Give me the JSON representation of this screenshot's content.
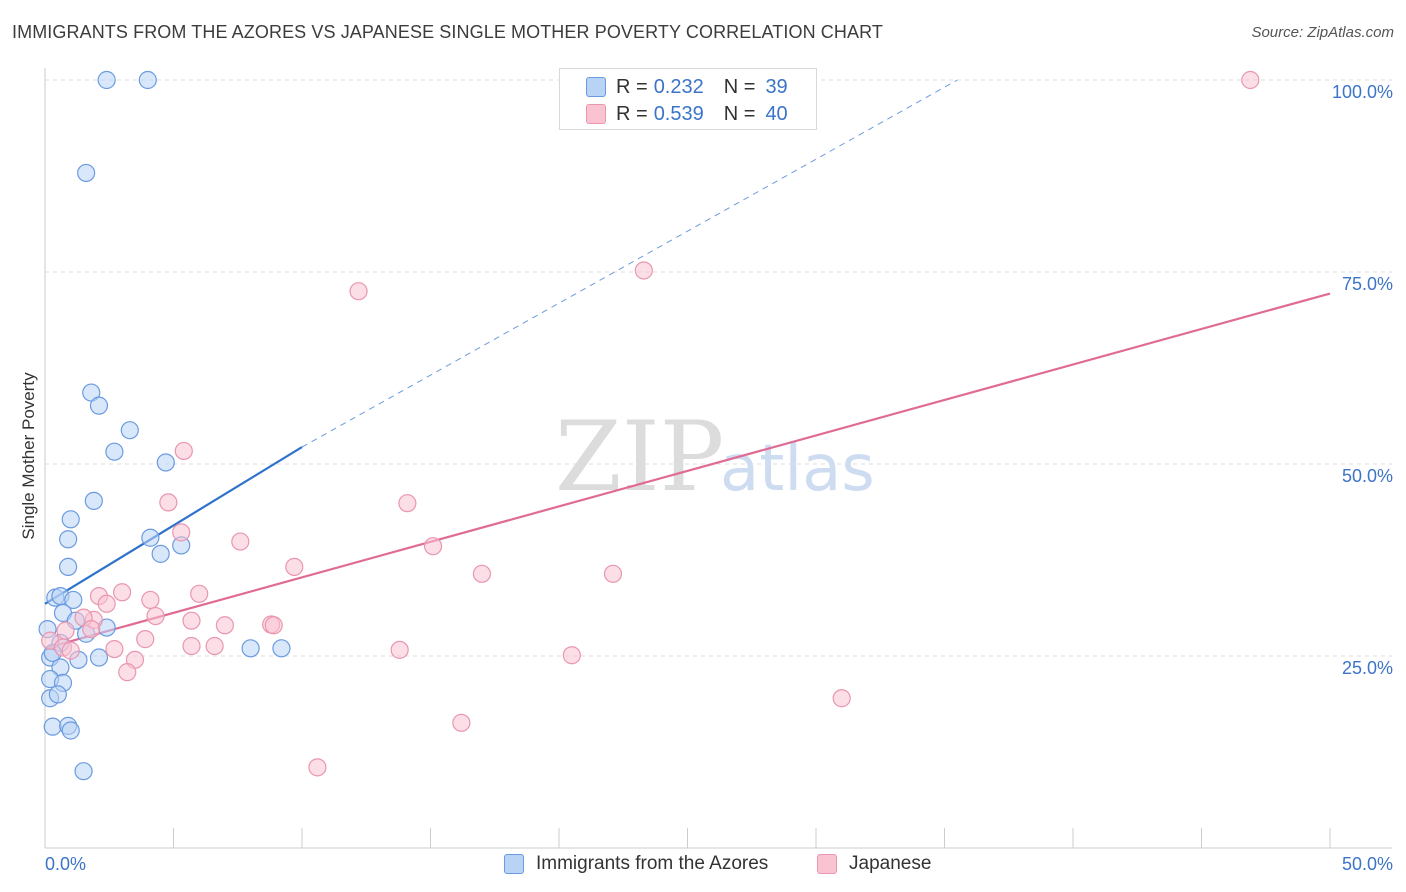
{
  "header": {
    "title": "IMMIGRANTS FROM THE AZORES VS JAPANESE SINGLE MOTHER POVERTY CORRELATION CHART",
    "source": "Source: ZipAtlas.com"
  },
  "watermark": {
    "zip": "ZIP",
    "atlas": "atlas"
  },
  "legend": {
    "r_label": "R =",
    "n_label": "N =",
    "rows": [
      {
        "r": "0.232",
        "n": "39"
      },
      {
        "r": "0.539",
        "n": "40"
      }
    ]
  },
  "colors": {
    "series1_fill": "#b9d3f5",
    "series1_stroke": "#6a9be0",
    "series1_line": "#2f72cc",
    "series2_fill": "#f9c3d2",
    "series2_stroke": "#e996b0",
    "series2_line": "#e06c93",
    "tick_label": "#3b74c8",
    "grid": "#dcdcdc"
  },
  "chart_data": {
    "type": "scatter",
    "title": "IMMIGRANTS FROM THE AZORES VS JAPANESE SINGLE MOTHER POVERTY CORRELATION CHART",
    "xlabel": "",
    "ylabel": "Single Mother Poverty",
    "xlim": [
      0,
      50
    ],
    "ylim": [
      0,
      100
    ],
    "x_tick_labels": [
      "0.0%",
      "50.0%"
    ],
    "y_ticks": [
      25,
      50,
      75,
      100
    ],
    "y_tick_labels": [
      "25.0%",
      "50.0%",
      "75.0%",
      "100.0%"
    ],
    "grid": true,
    "legend_position": "top-center",
    "series": [
      {
        "name": "Immigrants from the Azores",
        "r": 0.232,
        "n": 39,
        "trend": {
          "x": [
            0,
            10
          ],
          "y": [
            31.8,
            52.2
          ],
          "extended_to": [
            35.5,
            100
          ]
        },
        "points": [
          [
            2.4,
            100
          ],
          [
            4.0,
            100
          ],
          [
            1.6,
            87.9
          ],
          [
            1.8,
            59.3
          ],
          [
            2.1,
            57.6
          ],
          [
            3.3,
            54.4
          ],
          [
            2.7,
            51.6
          ],
          [
            4.7,
            50.2
          ],
          [
            1.9,
            45.2
          ],
          [
            1.0,
            42.8
          ],
          [
            0.9,
            40.2
          ],
          [
            4.1,
            40.4
          ],
          [
            5.3,
            39.4
          ],
          [
            4.5,
            38.3
          ],
          [
            0.9,
            36.6
          ],
          [
            0.4,
            32.6
          ],
          [
            0.6,
            32.8
          ],
          [
            1.1,
            32.3
          ],
          [
            0.7,
            30.6
          ],
          [
            1.2,
            29.6
          ],
          [
            1.6,
            27.9
          ],
          [
            2.4,
            28.7
          ],
          [
            0.1,
            28.5
          ],
          [
            0.6,
            26.7
          ],
          [
            0.2,
            24.8
          ],
          [
            0.3,
            25.4
          ],
          [
            1.3,
            24.5
          ],
          [
            2.1,
            24.8
          ],
          [
            0.6,
            23.5
          ],
          [
            0.2,
            22.0
          ],
          [
            0.7,
            21.5
          ],
          [
            0.2,
            19.5
          ],
          [
            0.5,
            20.0
          ],
          [
            0.3,
            15.8
          ],
          [
            0.9,
            15.9
          ],
          [
            1.0,
            15.3
          ],
          [
            1.5,
            10.0
          ],
          [
            8.0,
            26.0
          ],
          [
            9.2,
            26.0
          ]
        ]
      },
      {
        "name": "Japanese",
        "r": 0.539,
        "n": 40,
        "trend": {
          "x": [
            0,
            50
          ],
          "y": [
            26.0,
            72.2
          ]
        },
        "points": [
          [
            46.9,
            100
          ],
          [
            23.3,
            75.2
          ],
          [
            12.2,
            72.5
          ],
          [
            5.4,
            51.7
          ],
          [
            4.8,
            45.0
          ],
          [
            14.1,
            44.9
          ],
          [
            5.3,
            41.1
          ],
          [
            7.6,
            39.9
          ],
          [
            15.1,
            39.3
          ],
          [
            9.7,
            36.6
          ],
          [
            17.0,
            35.7
          ],
          [
            22.1,
            35.7
          ],
          [
            3.0,
            33.3
          ],
          [
            6.0,
            33.1
          ],
          [
            2.1,
            32.8
          ],
          [
            4.1,
            32.3
          ],
          [
            2.4,
            31.8
          ],
          [
            4.3,
            30.2
          ],
          [
            1.9,
            29.7
          ],
          [
            1.5,
            30.0
          ],
          [
            5.7,
            29.6
          ],
          [
            7.0,
            29.0
          ],
          [
            8.8,
            29.1
          ],
          [
            8.9,
            29.0
          ],
          [
            1.8,
            28.5
          ],
          [
            0.8,
            28.3
          ],
          [
            3.9,
            27.2
          ],
          [
            0.2,
            27.0
          ],
          [
            5.7,
            26.3
          ],
          [
            6.6,
            26.3
          ],
          [
            0.7,
            26.1
          ],
          [
            1.0,
            25.7
          ],
          [
            2.7,
            25.9
          ],
          [
            13.8,
            25.8
          ],
          [
            20.5,
            25.1
          ],
          [
            3.5,
            24.5
          ],
          [
            3.2,
            22.9
          ],
          [
            31.0,
            19.5
          ],
          [
            16.2,
            16.3
          ],
          [
            10.6,
            10.5
          ]
        ]
      }
    ]
  }
}
